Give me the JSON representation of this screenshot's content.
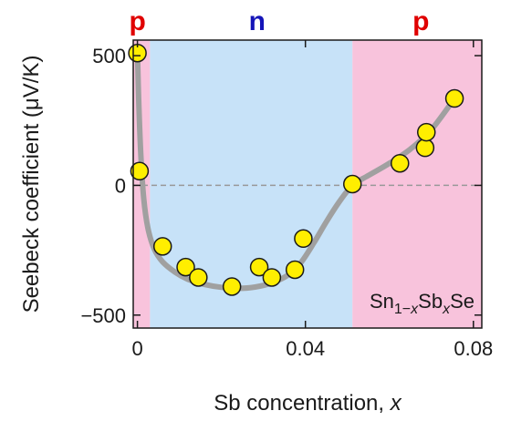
{
  "chart_data": {
    "type": "scatter",
    "title": "",
    "xlabel": "Sb concentration, ",
    "xlabel_var": "x",
    "ylabel": "Seebeck coefficient (μV/K)",
    "xlim": [
      -0.001,
      0.082
    ],
    "ylim": [
      -550,
      560
    ],
    "x_ticks": [
      0,
      0.04,
      0.08
    ],
    "x_tick_labels": [
      "0",
      "0.04",
      "0.08"
    ],
    "y_ticks": [
      -500,
      0,
      500
    ],
    "y_tick_labels": [
      "−500",
      "0",
      "500"
    ],
    "zero_line": true,
    "grid": false,
    "regions": [
      {
        "label": "p",
        "x_start": -0.001,
        "x_end": 0.003,
        "fill": "#f8c3dc",
        "label_color": "#e00000"
      },
      {
        "label": "n",
        "x_start": 0.003,
        "x_end": 0.0512,
        "fill": "#c7e2f8",
        "label_color": "#1515b8"
      },
      {
        "label": "p",
        "x_start": 0.0512,
        "x_end": 0.082,
        "fill": "#f8c3dc",
        "label_color": "#e00000"
      }
    ],
    "region_label_x": [
      0.0,
      0.0285,
      0.0675
    ],
    "points": [
      {
        "x": 0.0,
        "y": 510
      },
      {
        "x": 0.0005,
        "y": 55
      },
      {
        "x": 0.006,
        "y": -235
      },
      {
        "x": 0.0115,
        "y": -315
      },
      {
        "x": 0.0145,
        "y": -355
      },
      {
        "x": 0.0225,
        "y": -390
      },
      {
        "x": 0.029,
        "y": -315
      },
      {
        "x": 0.032,
        "y": -355
      },
      {
        "x": 0.0375,
        "y": -325
      },
      {
        "x": 0.0395,
        "y": -205
      },
      {
        "x": 0.0512,
        "y": 5
      },
      {
        "x": 0.0625,
        "y": 85
      },
      {
        "x": 0.0685,
        "y": 145
      },
      {
        "x": 0.0688,
        "y": 205
      },
      {
        "x": 0.0755,
        "y": 335
      }
    ],
    "trend_curve": [
      [
        0.0,
        520
      ],
      [
        0.0003,
        330
      ],
      [
        0.0008,
        120
      ],
      [
        0.0015,
        -50
      ],
      [
        0.0025,
        -165
      ],
      [
        0.004,
        -245
      ],
      [
        0.006,
        -295
      ],
      [
        0.009,
        -335
      ],
      [
        0.012,
        -362
      ],
      [
        0.016,
        -382
      ],
      [
        0.02,
        -393
      ],
      [
        0.024,
        -397
      ],
      [
        0.028,
        -392
      ],
      [
        0.032,
        -376
      ],
      [
        0.036,
        -344
      ],
      [
        0.039,
        -296
      ],
      [
        0.042,
        -222
      ],
      [
        0.045,
        -140
      ],
      [
        0.048,
        -65
      ],
      [
        0.0512,
        0
      ],
      [
        0.055,
        38
      ],
      [
        0.06,
        85
      ],
      [
        0.065,
        140
      ],
      [
        0.07,
        215
      ],
      [
        0.0755,
        335
      ]
    ],
    "annotation": {
      "base": "Sn",
      "sub1": "1−",
      "sub1_var": "x",
      "mid": "Sb",
      "sub2_var": "x",
      "end": "Se"
    },
    "colors": {
      "point_fill": "#ffee00",
      "point_stroke": "#1a1a1a",
      "curve": "#a0a0a0",
      "zero_line": "#999999"
    }
  }
}
